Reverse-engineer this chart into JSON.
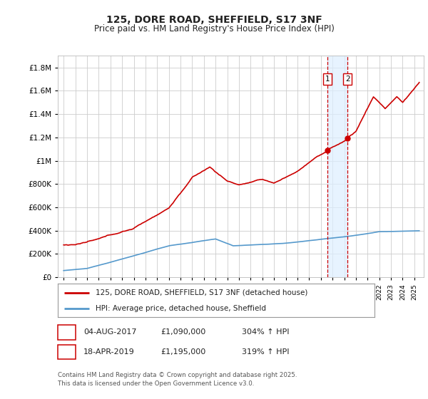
{
  "title": "125, DORE ROAD, SHEFFIELD, S17 3NF",
  "subtitle": "Price paid vs. HM Land Registry's House Price Index (HPI)",
  "background_color": "#ffffff",
  "grid_color": "#cccccc",
  "house_color": "#cc0000",
  "hpi_color": "#5599cc",
  "shade_color": "#ddeeff",
  "marker1_date_x": 2017.58,
  "marker2_date_x": 2019.29,
  "marker1_price": 1090000,
  "marker2_price": 1195000,
  "legend_house": "125, DORE ROAD, SHEFFIELD, S17 3NF (detached house)",
  "legend_hpi": "HPI: Average price, detached house, Sheffield",
  "note1_date": "04-AUG-2017",
  "note1_price": "£1,090,000",
  "note1_hpi": "304% ↑ HPI",
  "note2_date": "18-APR-2019",
  "note2_price": "£1,195,000",
  "note2_hpi": "319% ↑ HPI",
  "footer": "Contains HM Land Registry data © Crown copyright and database right 2025.\nThis data is licensed under the Open Government Licence v3.0.",
  "ylim_max": 1900000,
  "ylim_min": 0,
  "xlim_min": 1994.5,
  "xlim_max": 2025.8
}
